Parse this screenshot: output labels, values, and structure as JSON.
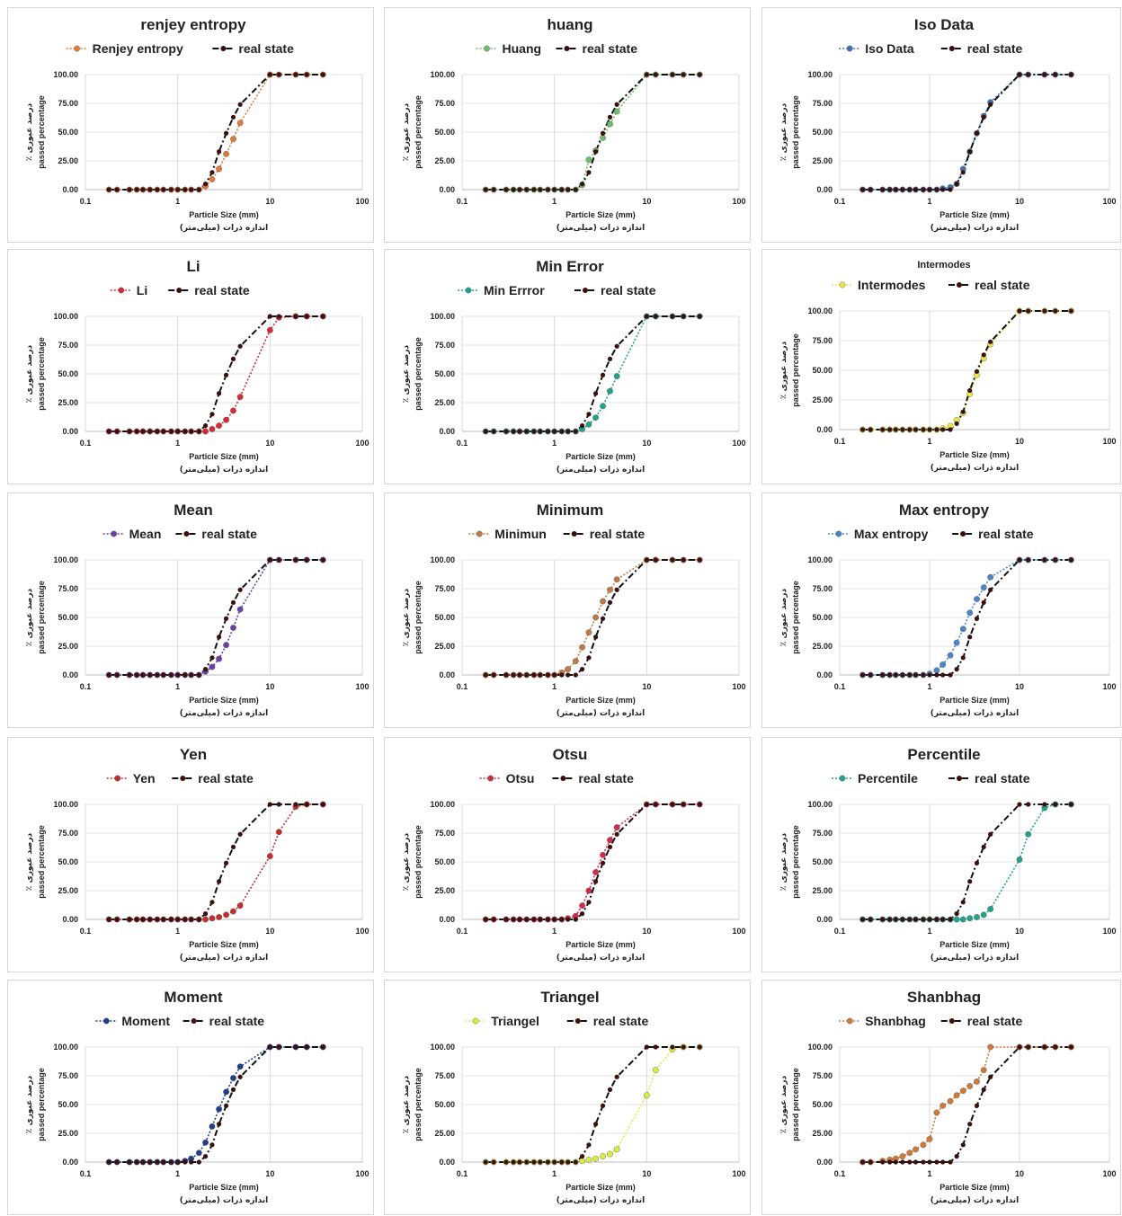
{
  "x_axis": {
    "label": "Particle Size (mm)",
    "label_fa": "اندازه ذرات (میلی‌متر)",
    "ticks": [
      "0.1",
      "1",
      "10",
      "100"
    ],
    "scale": "log",
    "xlim": [
      0.1,
      100
    ]
  },
  "y_axis": {
    "label": "passed percentage",
    "label_fa": "٪ درصد عبوری",
    "ticks": [
      "0.00",
      "25.00",
      "50.00",
      "75.00",
      "100.00"
    ],
    "ylim": [
      0,
      100
    ]
  },
  "reference_series": {
    "name": "real state",
    "color": "#111111",
    "x": [
      0.18,
      0.22,
      0.3,
      0.36,
      0.42,
      0.5,
      0.6,
      0.7,
      0.85,
      1.0,
      1.2,
      1.4,
      1.7,
      2.0,
      2.36,
      2.8,
      3.35,
      4.0,
      4.75,
      10,
      12.5,
      19,
      25,
      37.5
    ],
    "values": [
      0,
      0,
      0,
      0,
      0,
      0,
      0,
      0,
      0,
      0,
      0,
      0,
      0,
      5,
      15,
      33,
      49,
      63,
      74,
      100,
      100,
      100,
      100,
      100
    ]
  },
  "chart_data": [
    {
      "type": "line",
      "title": "renjey entropy",
      "legend": [
        "Renjey entropy",
        "real state"
      ],
      "color": "#e07b39",
      "series": [
        {
          "name": "Renjey entropy",
          "values": [
            0,
            0,
            0,
            0,
            0,
            0,
            0,
            0,
            0,
            0,
            0,
            0,
            0,
            3,
            9,
            18,
            31,
            44,
            58,
            100,
            100,
            100,
            100,
            100
          ]
        }
      ]
    },
    {
      "type": "line",
      "title": "huang",
      "legend": [
        "Huang",
        "real state"
      ],
      "color": "#6cbf6c",
      "series": [
        {
          "name": "Huang",
          "values": [
            0,
            0,
            0,
            0,
            0,
            0,
            0,
            0,
            0,
            0,
            0,
            0,
            0,
            4,
            26,
            34,
            45,
            57,
            68,
            100,
            100,
            100,
            100,
            100
          ]
        }
      ]
    },
    {
      "type": "line",
      "title": "Iso Data",
      "legend": [
        "Iso Data",
        "real state"
      ],
      "color": "#3f72b5",
      "series": [
        {
          "name": "Iso Data",
          "values": [
            0,
            0,
            0,
            0,
            0,
            0,
            0,
            0,
            0,
            0,
            0,
            1,
            2,
            5,
            18,
            33,
            49,
            64,
            76,
            100,
            100,
            100,
            100,
            100
          ]
        }
      ]
    },
    {
      "type": "line",
      "title": "Li",
      "legend": [
        "Li",
        "real state"
      ],
      "color": "#d62a35",
      "series": [
        {
          "name": "Li",
          "values": [
            0,
            0,
            0,
            0,
            0,
            0,
            0,
            0,
            0,
            0,
            0,
            0,
            0,
            0,
            2,
            5,
            10,
            18,
            30,
            88,
            99,
            100,
            100,
            100
          ]
        }
      ]
    },
    {
      "type": "line",
      "title": "Min Error",
      "legend": [
        "Min Errror",
        "real state"
      ],
      "color": "#1fa38a",
      "series": [
        {
          "name": "Min Errror",
          "values": [
            0,
            0,
            0,
            0,
            0,
            0,
            0,
            0,
            0,
            0,
            0,
            0,
            0,
            2,
            6,
            12,
            22,
            35,
            48,
            100,
            100,
            100,
            100,
            100
          ]
        }
      ]
    },
    {
      "type": "line",
      "title": "Intermodes",
      "legend": [
        "Intermodes",
        "real state"
      ],
      "color": "#e8e840",
      "series": [
        {
          "name": "Intermodes",
          "values": [
            0,
            0,
            0,
            0,
            0,
            0,
            0,
            0,
            0,
            0,
            0,
            1,
            3,
            8,
            14,
            30,
            46,
            60,
            72,
            100,
            100,
            100,
            100,
            100
          ]
        }
      ]
    },
    {
      "type": "line",
      "title": "Mean",
      "legend": [
        "Mean",
        "real state"
      ],
      "color": "#6a3fa6",
      "series": [
        {
          "name": "Mean",
          "values": [
            0,
            0,
            0,
            0,
            0,
            0,
            0,
            0,
            0,
            0,
            0,
            0,
            0,
            3,
            7,
            14,
            26,
            41,
            57,
            100,
            100,
            100,
            100,
            100
          ]
        }
      ]
    },
    {
      "type": "line",
      "title": "Minimum",
      "legend": [
        "Minimun",
        "real state"
      ],
      "color": "#c07a42",
      "series": [
        {
          "name": "Minimun",
          "values": [
            0,
            0,
            0,
            0,
            0,
            0,
            0,
            0,
            0,
            0,
            2,
            5,
            12,
            24,
            37,
            50,
            64,
            74,
            83,
            100,
            100,
            100,
            100,
            100
          ]
        }
      ]
    },
    {
      "type": "line",
      "title": "Max entropy",
      "legend": [
        "Max entropy",
        "real state"
      ],
      "color": "#4a86c9",
      "series": [
        {
          "name": "Max entropy",
          "values": [
            0,
            0,
            0,
            0,
            0,
            0,
            0,
            0,
            0,
            1,
            4,
            9,
            17,
            28,
            40,
            54,
            66,
            76,
            85,
            100,
            100,
            100,
            100,
            100
          ]
        }
      ]
    },
    {
      "type": "line",
      "title": "Yen",
      "legend": [
        "Yen",
        "real state"
      ],
      "color": "#c62c2c",
      "series": [
        {
          "name": "Yen",
          "values": [
            0,
            0,
            0,
            0,
            0,
            0,
            0,
            0,
            0,
            0,
            0,
            0,
            0,
            0,
            1,
            2,
            4,
            7,
            12,
            55,
            76,
            98,
            100,
            100
          ]
        }
      ]
    },
    {
      "type": "line",
      "title": "Otsu",
      "legend": [
        "Otsu",
        "real state"
      ],
      "color": "#d42a4a",
      "series": [
        {
          "name": "Otsu",
          "values": [
            0,
            0,
            0,
            0,
            0,
            0,
            0,
            0,
            0,
            0,
            0,
            1,
            3,
            12,
            25,
            41,
            56,
            69,
            80,
            100,
            100,
            100,
            100,
            100
          ]
        }
      ]
    },
    {
      "type": "line",
      "title": "Percentile",
      "legend": [
        "Percentile",
        "real state"
      ],
      "color": "#1fa38a",
      "series": [
        {
          "name": "Percentile",
          "values": [
            0,
            0,
            0,
            0,
            0,
            0,
            0,
            0,
            0,
            0,
            0,
            0,
            0,
            0,
            0,
            1,
            2,
            4,
            9,
            52,
            74,
            97,
            100,
            100
          ]
        }
      ]
    },
    {
      "type": "line",
      "title": "Moment",
      "legend": [
        "Moment",
        "real state"
      ],
      "color": "#1f3f8a",
      "series": [
        {
          "name": "Moment",
          "values": [
            0,
            0,
            0,
            0,
            0,
            0,
            0,
            0,
            0,
            0,
            1,
            3,
            8,
            17,
            31,
            46,
            61,
            73,
            83,
            100,
            100,
            100,
            100,
            100
          ]
        }
      ]
    },
    {
      "type": "line",
      "title": "Triangel",
      "legend": [
        "Triangel",
        "real state"
      ],
      "color": "#d9ee3a",
      "series": [
        {
          "name": "Triangel",
          "values": [
            0,
            0,
            0,
            0,
            0,
            0,
            0,
            0,
            0,
            0,
            0,
            0,
            0,
            1,
            2,
            3,
            5,
            7,
            11,
            58,
            80,
            98,
            100,
            100
          ]
        }
      ]
    },
    {
      "type": "line",
      "title": "Shanbhag",
      "legend": [
        "Shanbhag",
        "real state"
      ],
      "color": "#d07a3a",
      "series": [
        {
          "name": "Shanbhag",
          "values": [
            0,
            0,
            1,
            2,
            3,
            5,
            8,
            11,
            15,
            20,
            43,
            49,
            53,
            58,
            62,
            66,
            70,
            80,
            100,
            100,
            100,
            100,
            100,
            100
          ]
        }
      ]
    }
  ]
}
